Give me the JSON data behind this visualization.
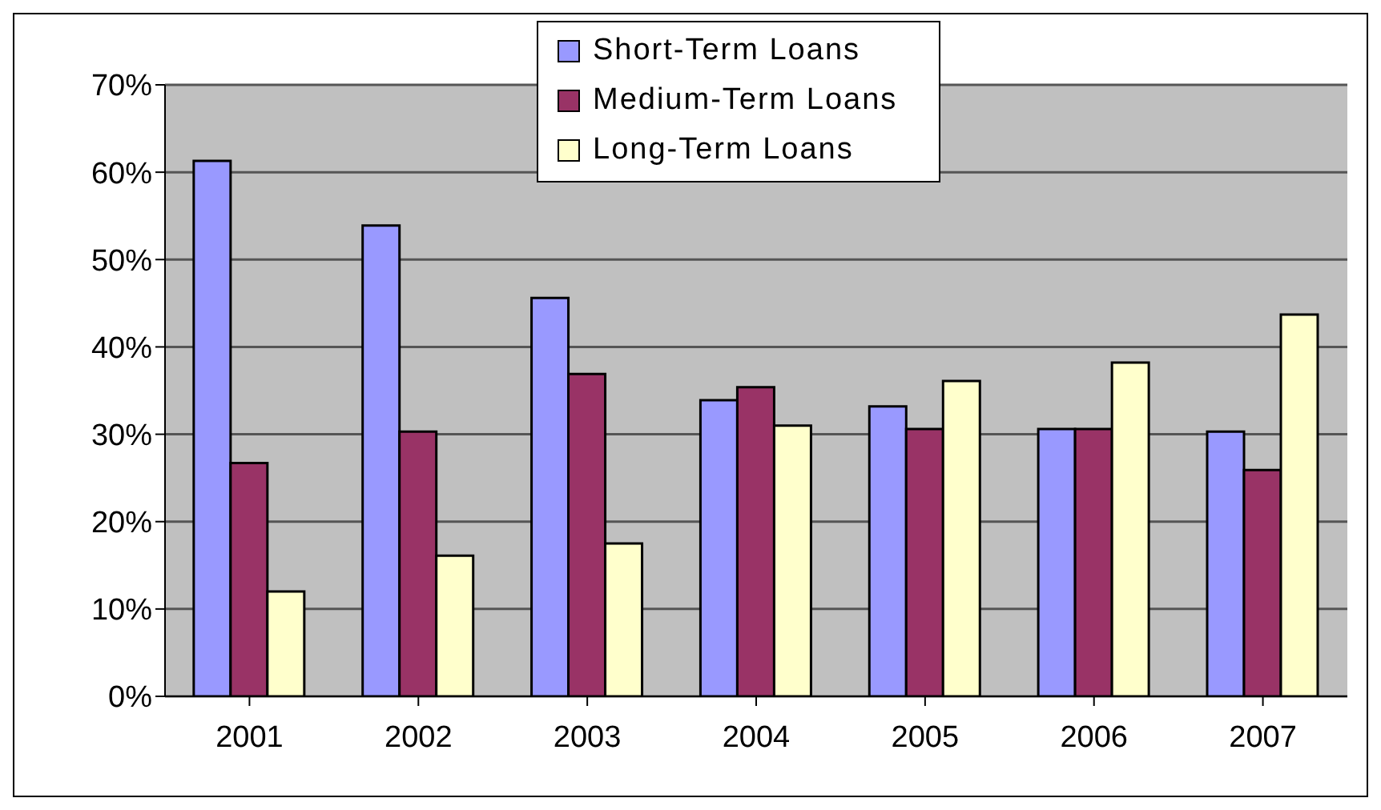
{
  "chart_data": {
    "type": "bar",
    "categories": [
      "2001",
      "2002",
      "2003",
      "2004",
      "2005",
      "2006",
      "2007"
    ],
    "series": [
      {
        "name": "Short-Term Loans",
        "color": "#9999ff",
        "values": [
          61.3,
          53.9,
          45.6,
          33.9,
          33.2,
          30.6,
          30.3
        ]
      },
      {
        "name": "Medium-Term Loans",
        "color": "#993366",
        "values": [
          26.7,
          30.3,
          36.9,
          35.4,
          30.6,
          30.6,
          25.9
        ]
      },
      {
        "name": "Long-Term Loans",
        "color": "#ffffcc",
        "values": [
          12.0,
          16.1,
          17.5,
          31.0,
          36.1,
          38.2,
          43.7
        ]
      }
    ],
    "ylim": [
      0,
      70
    ],
    "yticks": [
      {
        "value": 0,
        "label": "0%"
      },
      {
        "value": 10,
        "label": "10%"
      },
      {
        "value": 20,
        "label": "20%"
      },
      {
        "value": 30,
        "label": "30%"
      },
      {
        "value": 40,
        "label": "40%"
      },
      {
        "value": 50,
        "label": "50%"
      },
      {
        "value": 60,
        "label": "60%"
      },
      {
        "value": 70,
        "label": "70%"
      }
    ],
    "grid": "y",
    "legend": "top"
  }
}
